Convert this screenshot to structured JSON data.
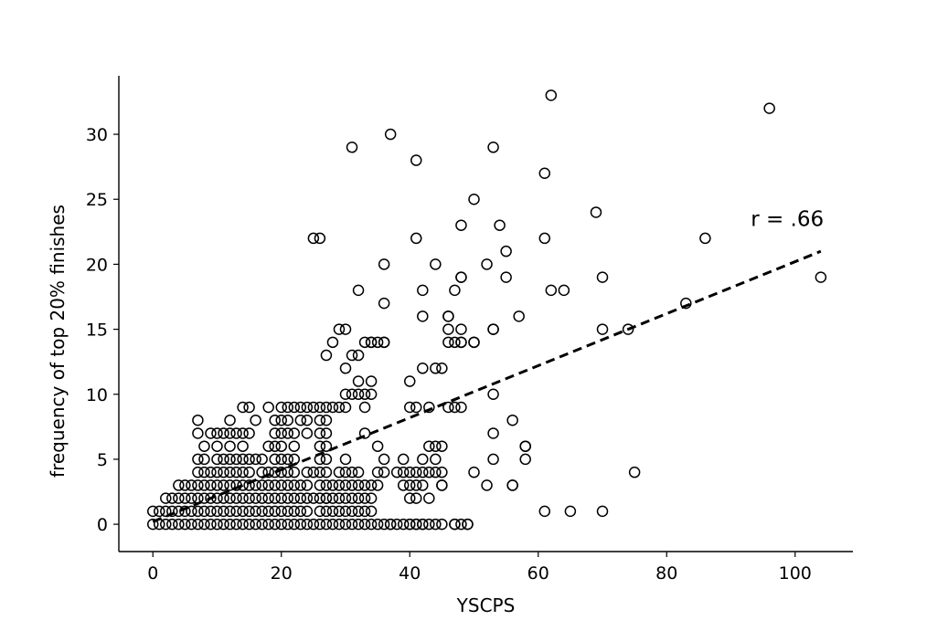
{
  "chart_data": {
    "type": "scatter",
    "xlabel": "YSCPS",
    "ylabel": "frequency of top 20% finishes",
    "xlim": [
      -5.3,
      109
    ],
    "ylim": [
      -2.1,
      34.5
    ],
    "xticks": [
      0,
      20,
      40,
      60,
      80,
      100
    ],
    "yticks": [
      0,
      5,
      10,
      15,
      20,
      25,
      30
    ],
    "grid": false,
    "marker": "open-circle",
    "annotations": [
      {
        "text": "r = .66",
        "x": 96.5,
        "y": 23.5
      }
    ],
    "fit_line": {
      "style": "dashed",
      "x": [
        0,
        104
      ],
      "y": [
        0.2,
        21
      ]
    },
    "x": [
      0,
      0,
      1,
      2,
      3,
      4,
      5,
      6,
      7,
      8,
      9,
      10,
      11,
      12,
      13,
      14,
      15,
      16,
      17,
      18,
      19,
      20,
      21,
      22,
      23,
      24,
      25,
      26,
      27,
      28,
      29,
      30,
      31,
      32,
      33,
      34,
      35,
      37,
      40,
      41,
      42,
      47,
      49,
      1,
      2,
      3,
      4,
      5,
      6,
      7,
      8,
      9,
      10,
      11,
      12,
      13,
      14,
      15,
      16,
      17,
      18,
      19,
      20,
      21,
      22,
      23,
      24,
      26,
      27,
      28,
      29,
      30,
      31,
      32,
      33,
      34,
      2,
      3,
      4,
      5,
      6,
      7,
      8,
      9,
      10,
      11,
      12,
      13,
      14,
      15,
      16,
      17,
      18,
      19,
      20,
      21,
      22,
      23,
      24,
      25,
      26,
      27,
      28,
      29,
      30,
      31,
      32,
      33,
      34,
      4,
      5,
      6,
      7,
      8,
      9,
      10,
      11,
      12,
      13,
      14,
      15,
      16,
      17,
      18,
      19,
      20,
      21,
      22,
      23,
      24,
      26,
      27,
      28,
      29,
      30,
      31,
      32,
      33,
      34,
      35,
      7,
      8,
      9,
      10,
      11,
      12,
      13,
      14,
      15,
      17,
      18,
      19,
      20,
      21,
      22,
      25,
      26,
      27,
      29,
      30,
      31,
      32,
      35,
      36,
      7,
      8,
      10,
      11,
      12,
      13,
      14,
      15,
      16,
      17,
      19,
      20,
      21,
      22,
      26,
      27,
      30,
      8,
      10,
      12,
      14,
      18,
      19,
      20,
      22,
      26,
      27,
      7,
      9,
      10,
      11,
      12,
      13,
      14,
      15,
      19,
      20,
      21,
      22,
      24,
      26,
      27,
      7,
      12,
      16,
      19,
      20,
      21,
      23,
      24,
      26,
      27,
      18,
      20,
      21,
      22,
      23,
      24,
      25,
      26,
      27,
      28,
      29,
      30,
      33,
      14,
      15,
      36,
      37,
      38,
      39,
      40,
      41,
      42,
      43,
      44,
      45,
      38,
      39,
      40,
      41,
      42,
      43,
      44,
      45,
      40,
      41,
      43,
      39,
      40,
      41,
      42,
      45,
      36,
      39,
      42,
      44,
      35,
      43,
      44,
      45,
      30,
      31,
      32,
      33,
      34,
      32,
      34,
      40,
      41,
      43,
      46,
      47,
      48,
      40,
      42,
      44,
      45,
      46,
      48,
      34,
      36,
      42,
      46,
      48,
      32,
      35,
      36,
      27,
      28,
      29,
      30,
      33,
      36,
      42,
      47,
      48,
      30,
      31,
      32,
      34,
      44,
      33,
      24,
      27,
      50,
      52,
      56,
      58,
      53,
      58,
      53,
      56,
      56,
      46,
      47,
      48,
      53,
      45,
      46,
      47,
      48,
      50,
      53,
      57,
      70,
      74,
      62,
      25,
      61,
      65,
      70,
      75,
      50,
      55,
      58,
      52,
      53,
      55,
      48,
      54,
      49,
      64,
      70,
      61,
      69,
      104,
      83,
      86,
      96,
      62,
      37,
      31,
      41,
      26,
      36,
      41,
      48,
      50,
      53,
      61
    ],
    "y": [
      0,
      1,
      0,
      0,
      0,
      0,
      0,
      0,
      0,
      0,
      0,
      0,
      0,
      0,
      0,
      0,
      0,
      0,
      0,
      0,
      0,
      0,
      0,
      0,
      0,
      0,
      0,
      0,
      0,
      0,
      0,
      0,
      0,
      0,
      0,
      0,
      0,
      0,
      0,
      0,
      0,
      0,
      0,
      1,
      1,
      1,
      1,
      1,
      1,
      1,
      1,
      1,
      1,
      1,
      1,
      1,
      1,
      1,
      1,
      1,
      1,
      1,
      1,
      1,
      1,
      1,
      1,
      1,
      1,
      1,
      1,
      1,
      1,
      1,
      1,
      1,
      2,
      2,
      2,
      2,
      2,
      2,
      2,
      2,
      2,
      2,
      2,
      2,
      2,
      2,
      2,
      2,
      2,
      2,
      2,
      2,
      2,
      2,
      2,
      2,
      2,
      2,
      2,
      2,
      2,
      2,
      2,
      2,
      2,
      3,
      3,
      3,
      3,
      3,
      3,
      3,
      3,
      3,
      3,
      3,
      3,
      3,
      3,
      3,
      3,
      3,
      3,
      3,
      3,
      3,
      3,
      3,
      3,
      3,
      3,
      3,
      3,
      3,
      3,
      3,
      4,
      4,
      4,
      4,
      4,
      4,
      4,
      4,
      4,
      4,
      4,
      4,
      4,
      4,
      4,
      4,
      4,
      4,
      4,
      4,
      4,
      4,
      4,
      4,
      5,
      5,
      5,
      5,
      5,
      5,
      5,
      5,
      5,
      5,
      5,
      5,
      5,
      5,
      5,
      5,
      5,
      6,
      6,
      6,
      6,
      6,
      6,
      6,
      6,
      6,
      6,
      7,
      7,
      7,
      7,
      7,
      7,
      7,
      7,
      7,
      7,
      7,
      7,
      7,
      7,
      7,
      8,
      8,
      8,
      8,
      8,
      8,
      8,
      8,
      8,
      8,
      9,
      9,
      9,
      9,
      9,
      9,
      9,
      9,
      9,
      9,
      9,
      9,
      9,
      9,
      9,
      0,
      0,
      0,
      0,
      0,
      0,
      0,
      0,
      0,
      0,
      4,
      4,
      4,
      4,
      4,
      4,
      4,
      4,
      2,
      2,
      2,
      3,
      3,
      3,
      3,
      3,
      5,
      5,
      5,
      5,
      6,
      6,
      6,
      6,
      10,
      10,
      10,
      10,
      10,
      11,
      11,
      9,
      9,
      9,
      9,
      9,
      9,
      11,
      12,
      12,
      12,
      15,
      15,
      14,
      14,
      16,
      16,
      14,
      13,
      14,
      14,
      13,
      14,
      15,
      15,
      14,
      17,
      18,
      18,
      19,
      12,
      13,
      18,
      14,
      20,
      7,
      4,
      2,
      4,
      3,
      3,
      6,
      5,
      5,
      7,
      8,
      3,
      14,
      14,
      14,
      10,
      3,
      16,
      0,
      0,
      14,
      15,
      16,
      15,
      15,
      18,
      22,
      1,
      1,
      1,
      4,
      25,
      19,
      6,
      20,
      15,
      21,
      19,
      23,
      0,
      18,
      19,
      22,
      24,
      19,
      17,
      22,
      32,
      33,
      30,
      29,
      28,
      22,
      20,
      22,
      23,
      14,
      29,
      27
    ]
  }
}
